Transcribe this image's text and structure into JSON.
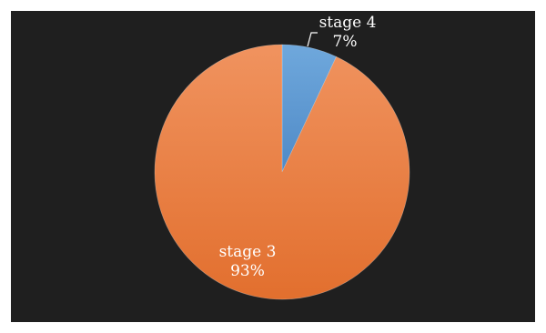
{
  "chart_data": {
    "type": "pie",
    "title": "",
    "slices": [
      {
        "label": "stage 4",
        "value": 7,
        "value_label": "7%",
        "color": "#5b9bd5"
      },
      {
        "label": "stage 3",
        "value": 93,
        "value_label": "93%",
        "color": "#ed7d31"
      }
    ],
    "background": "#1f1f1f",
    "start_angle": "12 o'clock",
    "direction": "clockwise",
    "legend": "none (data labels on chart)"
  }
}
